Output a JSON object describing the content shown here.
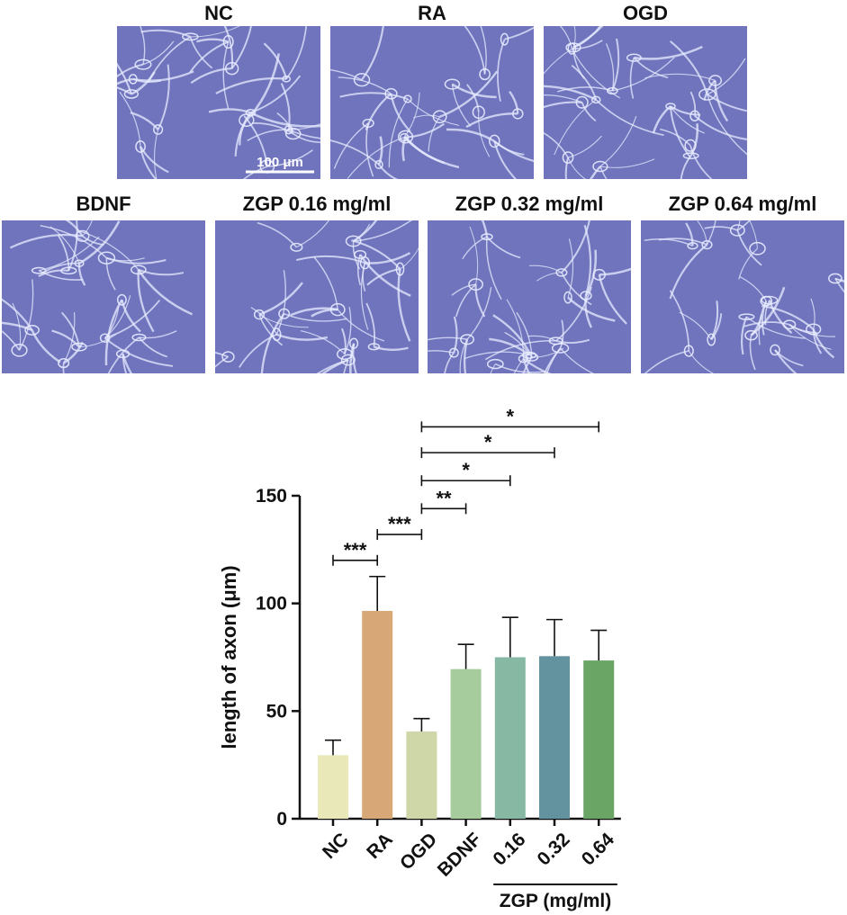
{
  "panels": [
    {
      "label": "NC",
      "scale_bar": "100 μm"
    },
    {
      "label": "RA"
    },
    {
      "label": "OGD"
    },
    {
      "label": "BDNF"
    },
    {
      "label": "ZGP 0.16 mg/ml"
    },
    {
      "label": "ZGP 0.32 mg/ml"
    },
    {
      "label": "ZGP 0.64 mg/ml"
    }
  ],
  "colors": {
    "micrograph_background": "#6f74bd",
    "cell": "#e8ecff"
  },
  "chart_data": {
    "type": "bar",
    "categories": [
      "NC",
      "RA",
      "OGD",
      "BDNF",
      "0.16",
      "0.32",
      "0.64"
    ],
    "group_label": "ZGP (mg/ml)",
    "values": [
      29.5,
      96.5,
      40.5,
      69.5,
      75,
      75.5,
      73.5
    ],
    "errors": [
      7,
      16,
      6,
      11.5,
      18.5,
      17,
      14
    ],
    "colors": [
      "#e8e8b8",
      "#d8a777",
      "#cfd6a8",
      "#a6cc9e",
      "#87b8a3",
      "#6493a0",
      "#6aa566"
    ],
    "ylabel": "length of axon (μm)",
    "ylim": [
      0,
      150
    ],
    "yticks": [
      0,
      50,
      100,
      150
    ],
    "grid": false,
    "significance": [
      {
        "from": "NC",
        "to": "RA",
        "label": "***",
        "y": 120
      },
      {
        "from": "RA",
        "to": "OGD",
        "label": "***",
        "y": 132
      },
      {
        "from": "OGD",
        "to": "BDNF",
        "label": "**",
        "y": 144
      },
      {
        "from": "OGD",
        "to": "0.16",
        "label": "*",
        "y": 157
      },
      {
        "from": "OGD",
        "to": "0.32",
        "label": "*",
        "y": 170
      },
      {
        "from": "OGD",
        "to": "0.64",
        "label": "*",
        "y": 182
      }
    ]
  }
}
